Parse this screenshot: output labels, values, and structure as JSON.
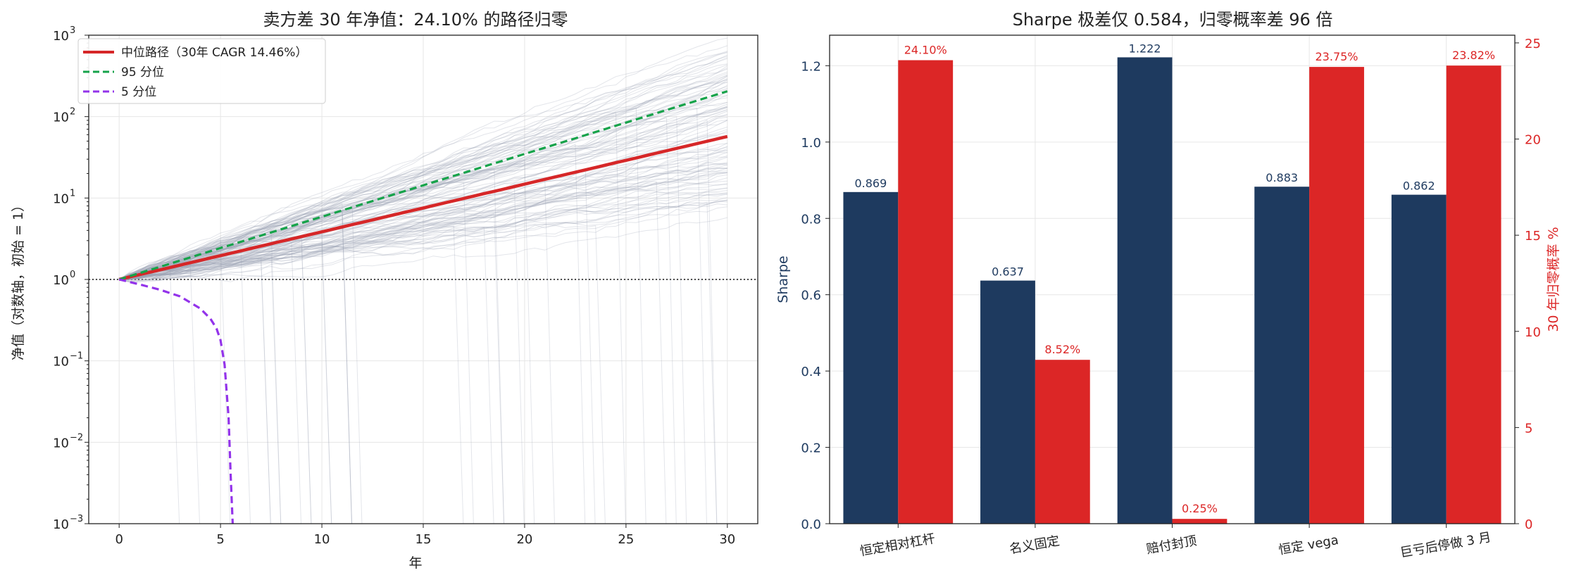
{
  "chart_data": [
    {
      "type": "line",
      "title": "卖方差 30 年净值：24.10% 的路径归零",
      "xlabel": "年",
      "ylabel": "净值（对数轴，初始 = 1）",
      "xlim": [
        -1.5,
        31.5
      ],
      "ylim": [
        0.001,
        1000
      ],
      "yscale": "log",
      "xticks": [
        "0",
        "5",
        "10",
        "15",
        "20",
        "25",
        "30"
      ],
      "yticks": [
        "10",
        "10",
        "10",
        "10",
        "10",
        "10",
        "10"
      ],
      "ytick_exponents": [
        "−3",
        "−2",
        "−1",
        "0",
        "1",
        "2",
        "3"
      ],
      "grid": true,
      "legend_position": "top-left",
      "reference_line": 1,
      "series": [
        {
          "name": "中位路径（30年 CAGR 14.46%）",
          "color": "#d62728",
          "style": "solid",
          "x": [
            0,
            30
          ],
          "y": [
            1,
            57
          ]
        },
        {
          "name": "95 分位",
          "color": "#16a34a",
          "style": "dashed",
          "x": [
            0,
            30
          ],
          "y": [
            1,
            205
          ]
        },
        {
          "name": "5 分位",
          "color": "#9333ea",
          "style": "dashed",
          "x": [
            0,
            1,
            2,
            3,
            4,
            4.5,
            4.8,
            5.0,
            5.2,
            5.4,
            5.5,
            5.6
          ],
          "y": [
            1,
            0.87,
            0.75,
            0.62,
            0.44,
            0.33,
            0.25,
            0.18,
            0.09,
            0.02,
            0.004,
            0.001
          ]
        }
      ]
    },
    {
      "type": "bar",
      "title": "Sharpe 极差仅 0.584，归零概率差 96 倍",
      "categories": [
        "恒定相对杠杆",
        "名义固定",
        "赔付封顶",
        "恒定 vega",
        "巨亏后停做 3 月"
      ],
      "ylabel_left": "Sharpe",
      "ylabel_right": "30 年归零概率 %",
      "ylim_left": [
        0,
        1.28
      ],
      "ylim_right": [
        0,
        25.4
      ],
      "yticks_left": [
        "0.0",
        "0.2",
        "0.4",
        "0.6",
        "0.8",
        "1.0",
        "1.2"
      ],
      "yticks_right": [
        "0",
        "5",
        "10",
        "15",
        "20",
        "25"
      ],
      "grid": true,
      "series": [
        {
          "name": "Sharpe",
          "axis": "left",
          "color": "#1e3a5f",
          "values": [
            0.869,
            0.637,
            1.222,
            0.883,
            0.862
          ],
          "labels": [
            "0.869",
            "0.637",
            "1.222",
            "0.883",
            "0.862"
          ]
        },
        {
          "name": "30 年归零概率 %",
          "axis": "right",
          "color": "#dc2626",
          "values": [
            24.1,
            8.52,
            0.25,
            23.75,
            23.82
          ],
          "labels": [
            "24.10%",
            "8.52%",
            "0.25%",
            "23.75%",
            "23.82%"
          ]
        }
      ]
    }
  ]
}
